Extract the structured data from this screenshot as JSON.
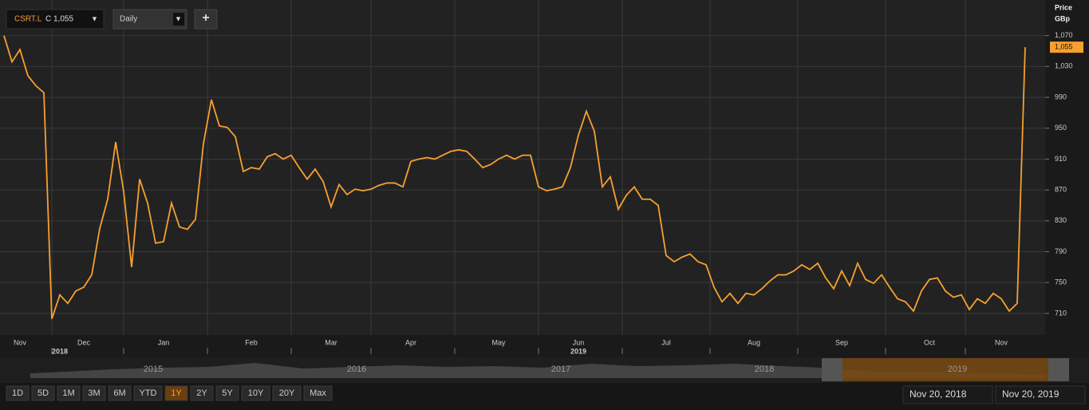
{
  "chart_data": {
    "type": "line",
    "ticker": "CSRT.L",
    "quote": "C 1,055",
    "interval": "Daily",
    "add_button": "+",
    "ylabel": "Price",
    "yunit": "GBp",
    "ylim": [
      682,
      1111
    ],
    "yticks": [
      {
        "value": 710,
        "label": "710"
      },
      750,
      790,
      830,
      870,
      910,
      950,
      990,
      {
        "value": 1030,
        "label": "1,030"
      },
      {
        "value": 1070,
        "label": "1,070"
      }
    ],
    "grid": true,
    "categories": [
      null,
      null,
      "Nov",
      null,
      null,
      null,
      null,
      null,
      null,
      null,
      "Dec",
      null,
      null,
      null,
      null,
      null,
      null,
      null,
      null,
      null,
      "Jan",
      null,
      null,
      null,
      null,
      null,
      null,
      null,
      null,
      null,
      null,
      "Feb",
      null,
      null,
      null,
      null,
      null,
      null,
      null,
      null,
      null,
      "Mar",
      null,
      null,
      null,
      null,
      null,
      null,
      null,
      null,
      null,
      "Apr",
      null,
      null,
      null,
      null,
      null,
      null,
      null,
      null,
      null,
      null,
      "May",
      null,
      null,
      null,
      null,
      null,
      null,
      null,
      null,
      null,
      "Jun",
      null,
      null,
      null,
      null,
      null,
      null,
      null,
      null,
      null,
      null,
      "Jul",
      null,
      null,
      null,
      null,
      null,
      null,
      null,
      null,
      null,
      null,
      "Aug",
      null,
      null,
      null,
      null,
      null,
      null,
      null,
      null,
      null,
      null,
      "Sep",
      null,
      null,
      null,
      null,
      null,
      null,
      null,
      null,
      null,
      null,
      "Oct",
      null,
      null,
      null,
      null,
      null,
      null,
      null,
      null,
      "Nov",
      null,
      null,
      null
    ],
    "year_labels": [
      null,
      null,
      null,
      null,
      null,
      null,
      null,
      "2018",
      null,
      null,
      null,
      null,
      null,
      null,
      null,
      null,
      null,
      null,
      null,
      null,
      null,
      null,
      null,
      null,
      null,
      null,
      null,
      null,
      null,
      null,
      null,
      null,
      null,
      null,
      null,
      null,
      null,
      null,
      null,
      null,
      null,
      null,
      null,
      null,
      null,
      null,
      null,
      null,
      null,
      null,
      null,
      null,
      null,
      null,
      null,
      null,
      null,
      null,
      null,
      null,
      null,
      null,
      null,
      null,
      null,
      null,
      null,
      null,
      null,
      null,
      null,
      null,
      "2019",
      null,
      null,
      null,
      null,
      null,
      null,
      null,
      null,
      null,
      null,
      null,
      null,
      null,
      null,
      null,
      null,
      null,
      null,
      null,
      null,
      null,
      null,
      null,
      null,
      null,
      null,
      null,
      null,
      null,
      null,
      null,
      null,
      null,
      null,
      null,
      null,
      null,
      null,
      null,
      null,
      null,
      null,
      null,
      null,
      null,
      null,
      null,
      null,
      null,
      null,
      null,
      null,
      null,
      null,
      null,
      null,
      null,
      null,
      null,
      null
    ],
    "series": [
      {
        "name": "CSRT.L",
        "color": "#f7a030",
        "values": [
          1070,
          1036,
          1052,
          1018,
          1005,
          996,
          703,
          734,
          723,
          739,
          744,
          760,
          820,
          858,
          932,
          868,
          770,
          884,
          853,
          801,
          803,
          853,
          822,
          819,
          832,
          930,
          987,
          953,
          951,
          939,
          894,
          899,
          897,
          913,
          917,
          910,
          915,
          899,
          884,
          897,
          881,
          848,
          877,
          864,
          871,
          869,
          871,
          876,
          879,
          879,
          874,
          907,
          910,
          912,
          910,
          915,
          920,
          922,
          920,
          910,
          899,
          903,
          910,
          915,
          910,
          915,
          915,
          874,
          869,
          871,
          874,
          899,
          941,
          972,
          946,
          874,
          887,
          845,
          863,
          874,
          858,
          858,
          850,
          785,
          777,
          783,
          787,
          777,
          773,
          744,
          725,
          736,
          723,
          736,
          734,
          742,
          752,
          760,
          760,
          765,
          773,
          767,
          775,
          756,
          742,
          765,
          746,
          775,
          754,
          749,
          760,
          744,
          729,
          725,
          713,
          739,
          754,
          756,
          739,
          731,
          734,
          715,
          729,
          723,
          736,
          729,
          713,
          723,
          1055
        ],
        "value_labels": [
          null,
          null,
          null,
          null,
          null,
          null,
          null,
          null,
          null,
          null,
          null,
          null,
          null,
          null,
          null,
          null,
          null,
          null,
          null,
          null,
          null,
          null,
          null,
          null,
          null,
          null,
          null,
          null,
          null,
          null,
          null,
          null,
          null,
          null,
          null,
          null,
          null,
          null,
          null,
          null,
          null,
          null,
          null,
          null,
          null,
          null,
          null,
          null,
          null,
          null,
          null,
          null,
          null,
          null,
          null,
          null,
          null,
          null,
          null,
          null,
          null,
          null,
          null,
          null,
          null,
          null,
          null,
          null,
          null,
          null,
          null,
          null,
          null,
          null,
          null,
          null,
          null,
          null,
          null,
          null,
          null,
          null,
          null,
          null,
          null,
          null,
          null,
          null,
          null,
          null,
          null,
          null,
          null,
          null,
          null,
          null,
          null,
          null,
          null,
          null,
          null,
          null,
          null,
          null,
          null,
          null,
          null,
          null,
          null,
          null,
          null,
          null,
          null,
          null,
          null,
          null,
          null,
          null,
          null,
          null,
          null,
          null,
          null,
          null,
          null,
          null,
          null,
          null,
          "1,055"
        ]
      }
    ],
    "navigator_labels": [
      "2015",
      "2016",
      "2017",
      "2018",
      "2019"
    ],
    "range_buttons": [
      "1D",
      "5D",
      "1M",
      "3M",
      "6M",
      "YTD",
      "1Y",
      "2Y",
      "5Y",
      "10Y",
      "20Y",
      "Max"
    ],
    "active_range_index": 6,
    "date_from": "Nov 20, 2018",
    "date_to": "Nov 20, 2019"
  }
}
